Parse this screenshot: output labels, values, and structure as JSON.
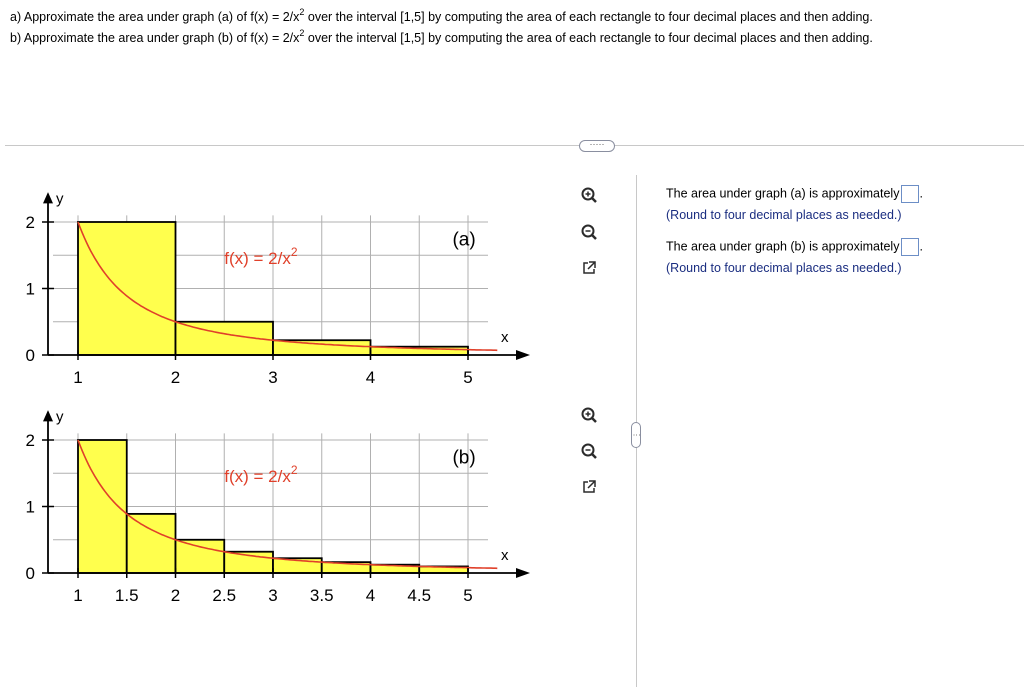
{
  "question": {
    "a": {
      "pre": "a) Approximate the area under graph (a) of f(x) = 2/x",
      "exp": "2",
      "post": " over the interval [1,5] by computing the area of each rectangle to four decimal places and then adding."
    },
    "b": {
      "pre": "b) Approximate the area under graph (b) of f(x) = 2/x",
      "exp": "2",
      "post": " over the interval [1,5] by computing the area of each rectangle to four decimal places and then adding."
    }
  },
  "divider": {
    "more_label": "·····",
    "side_label": "⋮"
  },
  "graphs": {
    "a": {
      "label": "(a)",
      "func_label_pre": "f(x) = 2/x",
      "func_exp": "2",
      "y_axis_label": "y",
      "x_axis_label": "x",
      "x_tick_labels": [
        "1",
        "2",
        "3",
        "4",
        "5"
      ],
      "y_tick_labels": [
        "0",
        "1",
        "2"
      ]
    },
    "b": {
      "label": "(b)",
      "func_label_pre": "f(x) = 2/x",
      "func_exp": "2",
      "y_axis_label": "y",
      "x_axis_label": "x",
      "x_tick_labels": [
        "1",
        "1.5",
        "2",
        "2.5",
        "3",
        "3.5",
        "4",
        "4.5",
        "5"
      ],
      "y_tick_labels": [
        "0",
        "1",
        "2"
      ]
    }
  },
  "tools": {
    "a": [
      "zoom-in-icon",
      "zoom-out-icon",
      "popout-icon"
    ],
    "b": [
      "zoom-in-icon",
      "zoom-out-icon",
      "popout-icon"
    ]
  },
  "answers": {
    "a": {
      "prompt": "The area under graph (a) is approximately",
      "suffix": ".",
      "note": "(Round to four decimal places as needed.)",
      "value": ""
    },
    "b": {
      "prompt": "The area under graph (b) is approximately",
      "suffix": ".",
      "note": "(Round to four decimal places as needed.)",
      "value": ""
    }
  },
  "colors": {
    "rect_fill": "#ffff4d",
    "curve": "#e0402a",
    "grid": "#b0b0b0",
    "note": "#1a2d80",
    "input_border": "#6c8ec6"
  }
}
